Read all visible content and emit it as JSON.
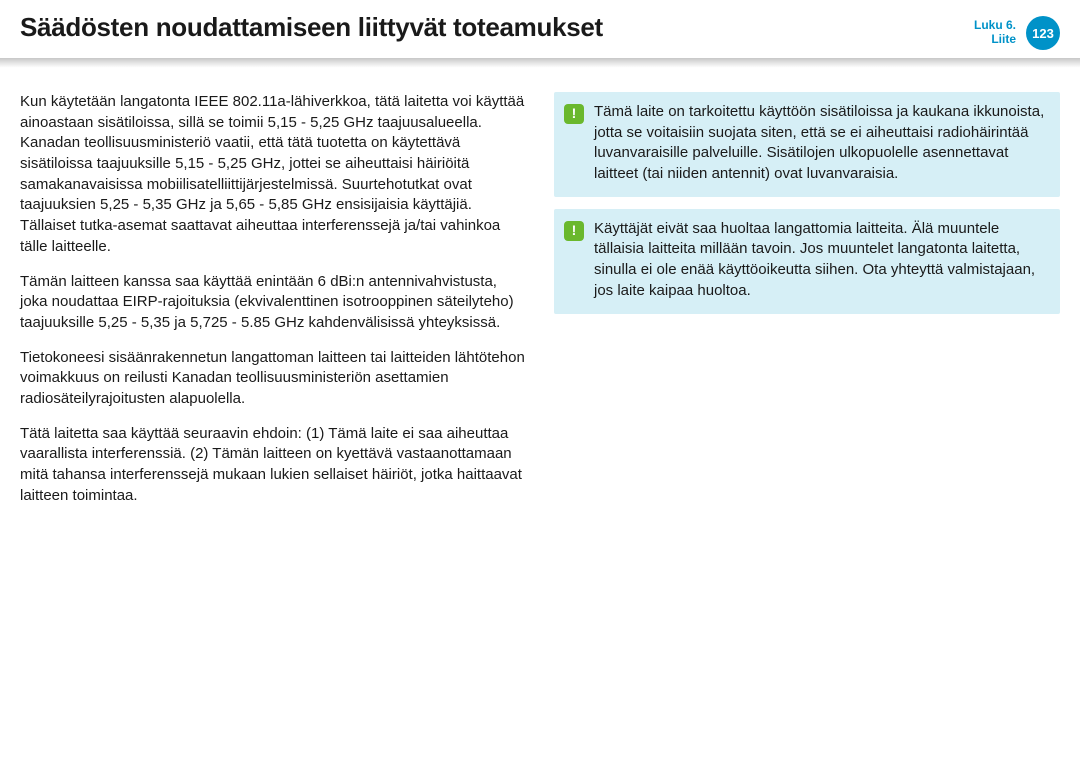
{
  "colors": {
    "accent": "#0092c8",
    "note_bg": "#d6eff6",
    "note_icon_bg": "#6ab82d",
    "text": "#1a1a1a"
  },
  "header": {
    "title": "Säädösten noudattamiseen liittyvät toteamukset",
    "chapter_line1": "Luku 6.",
    "chapter_line2": "Liite",
    "page_number": "123"
  },
  "left_paragraphs": [
    "Kun käytetään langatonta IEEE 802.11a-lähiverkkoa, tätä laitetta voi käyttää ainoastaan sisätiloissa, sillä se toimii 5,15 - 5,25 GHz taajuusalueella. Kanadan teollisuusministeriö vaatii, että tätä tuotetta on käytettävä sisätiloissa taajuuksille 5,15 - 5,25 GHz, jottei se aiheuttaisi häiriöitä samakanavaisissa mobiilisatelliittijärjestelmissä. Suurtehotutkat ovat taajuuksien 5,25 - 5,35 GHz ja 5,65 - 5,85 GHz ensisijaisia käyttäjiä. Tällaiset tutka-asemat saattavat aiheuttaa interferenssejä ja/tai vahinkoa tälle laitteelle.",
    "Tämän laitteen kanssa saa käyttää enintään 6 dBi:n antennivahvistusta, joka noudattaa EIRP-rajoituksia (ekvivalenttinen isotrooppinen säteilyteho) taajuuksille 5,25 - 5,35 ja 5,725 - 5.85 GHz kahdenvälisissä yhteyksissä.",
    "Tietokoneesi sisäänrakennetun langattoman laitteen tai laitteiden lähtötehon voimakkuus on reilusti Kanadan teollisuusministeriön asettamien radiosäteilyrajoitusten alapuolella.",
    "Tätä laitetta saa käyttää seuraavin ehdoin: (1) Tämä laite ei saa aiheuttaa vaarallista interferenssiä. (2) Tämän laitteen on kyettävä vastaanottamaan mitä tahansa interferenssejä mukaan lukien sellaiset häiriöt, jotka haittaavat laitteen toimintaa."
  ],
  "notes": [
    {
      "icon": "!",
      "text": "Tämä laite on tarkoitettu käyttöön sisätiloissa ja kaukana ikkunoista, jotta se voitaisiin suojata siten, että se ei aiheuttaisi radiohäirintää luvanvaraisille palveluille. Sisätilojen ulkopuolelle asennettavat laitteet (tai niiden antennit) ovat luvanvaraisia."
    },
    {
      "icon": "!",
      "text": "Käyttäjät eivät saa huoltaa langattomia laitteita. Älä muuntele tällaisia laitteita millään tavoin. Jos muuntelet langatonta laitetta, sinulla ei ole enää käyttöoikeutta siihen. Ota yhteyttä valmistajaan, jos laite kaipaa huoltoa."
    }
  ]
}
